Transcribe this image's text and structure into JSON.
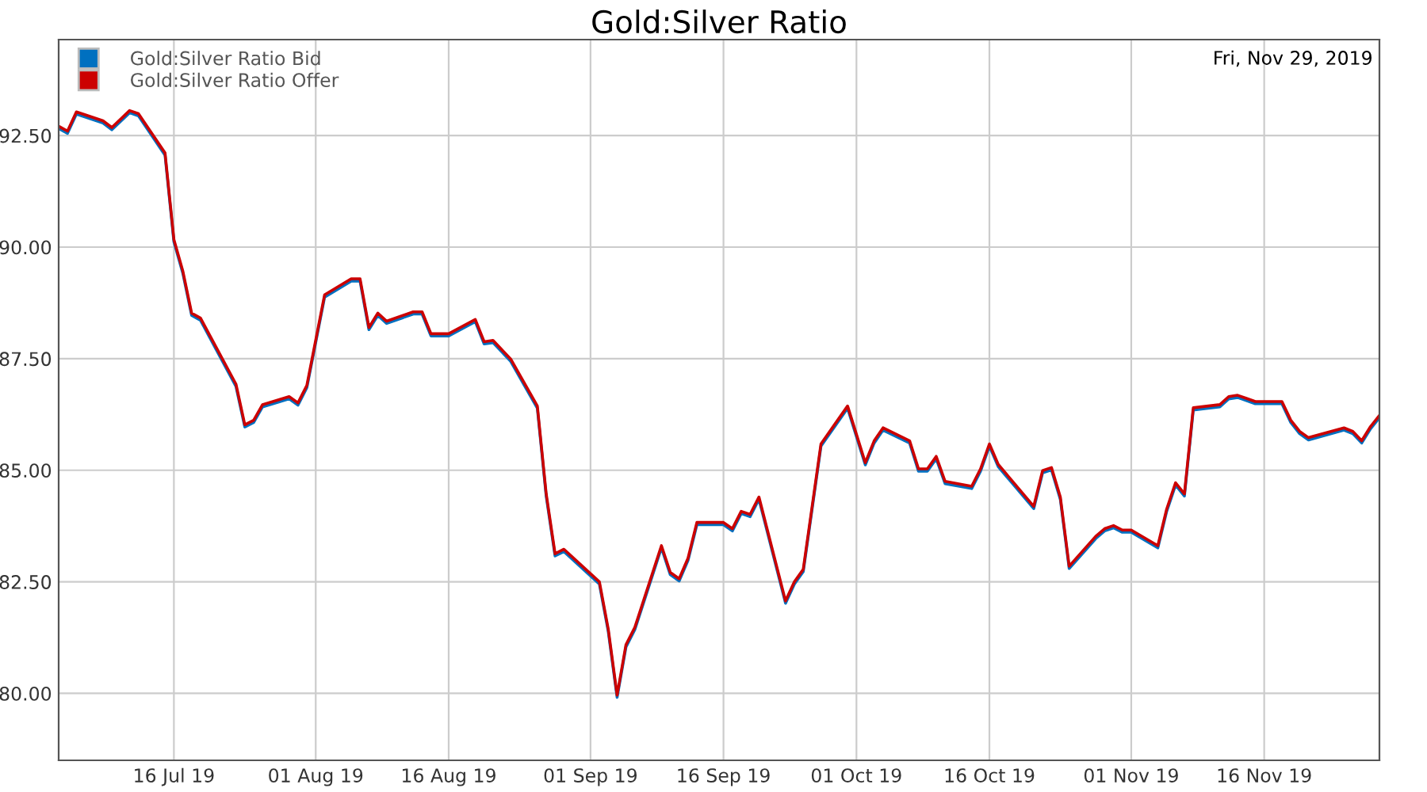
{
  "chart_data": {
    "type": "line",
    "title": "Gold:Silver Ratio",
    "annotations": [
      "Fri, Nov 29, 2019"
    ],
    "x": [
      "2019-07-03",
      "2019-07-04",
      "2019-07-05",
      "2019-07-08",
      "2019-07-09",
      "2019-07-11",
      "2019-07-12",
      "2019-07-15",
      "2019-07-16",
      "2019-07-17",
      "2019-07-18",
      "2019-07-19",
      "2019-07-23",
      "2019-07-24",
      "2019-07-25",
      "2019-07-26",
      "2019-07-29",
      "2019-07-30",
      "2019-07-31",
      "2019-08-02",
      "2019-08-05",
      "2019-08-06",
      "2019-08-07",
      "2019-08-08",
      "2019-08-09",
      "2019-08-12",
      "2019-08-13",
      "2019-08-14",
      "2019-08-16",
      "2019-08-19",
      "2019-08-20",
      "2019-08-21",
      "2019-08-23",
      "2019-08-26",
      "2019-08-27",
      "2019-08-28",
      "2019-08-29",
      "2019-09-02",
      "2019-09-03",
      "2019-09-04",
      "2019-09-05",
      "2019-09-06",
      "2019-09-09",
      "2019-09-10",
      "2019-09-11",
      "2019-09-12",
      "2019-09-13",
      "2019-09-16",
      "2019-09-17",
      "2019-09-18",
      "2019-09-19",
      "2019-09-20",
      "2019-09-23",
      "2019-09-24",
      "2019-09-25",
      "2019-09-27",
      "2019-09-30",
      "2019-10-02",
      "2019-10-03",
      "2019-10-04",
      "2019-10-07",
      "2019-10-08",
      "2019-10-09",
      "2019-10-10",
      "2019-10-11",
      "2019-10-14",
      "2019-10-15",
      "2019-10-16",
      "2019-10-17",
      "2019-10-21",
      "2019-10-22",
      "2019-10-23",
      "2019-10-24",
      "2019-10-25",
      "2019-10-28",
      "2019-10-29",
      "2019-10-30",
      "2019-10-31",
      "2019-11-01",
      "2019-11-04",
      "2019-11-05",
      "2019-11-06",
      "2019-11-07",
      "2019-11-08",
      "2019-11-11",
      "2019-11-12",
      "2019-11-13",
      "2019-11-14",
      "2019-11-15",
      "2019-11-18",
      "2019-11-19",
      "2019-11-20",
      "2019-11-21",
      "2019-11-25",
      "2019-11-26",
      "2019-11-27",
      "2019-11-28",
      "2019-11-29"
    ],
    "series": [
      {
        "name": "Gold:Silver Ratio Bid",
        "color": "#0070c0",
        "values": [
          92.66,
          92.55,
          92.98,
          92.78,
          92.63,
          93.01,
          92.94,
          92.06,
          90.12,
          89.42,
          88.47,
          88.36,
          86.88,
          85.97,
          86.07,
          86.42,
          86.6,
          86.46,
          86.85,
          88.88,
          89.24,
          89.24,
          88.15,
          88.47,
          88.29,
          88.5,
          88.5,
          88.01,
          88.01,
          88.33,
          87.83,
          87.86,
          87.44,
          86.39,
          84.42,
          83.08,
          83.18,
          82.45,
          81.39,
          79.91,
          81.04,
          81.43,
          83.26,
          82.66,
          82.52,
          82.98,
          83.78,
          83.78,
          83.64,
          84.03,
          83.96,
          84.35,
          82.02,
          82.45,
          82.73,
          85.54,
          86.39,
          85.12,
          85.61,
          85.9,
          85.61,
          84.98,
          84.98,
          85.26,
          84.7,
          84.59,
          84.98,
          85.54,
          85.08,
          84.14,
          84.94,
          85.01,
          84.35,
          82.8,
          83.47,
          83.64,
          83.71,
          83.61,
          83.61,
          83.26,
          84.08,
          84.67,
          84.42,
          86.35,
          86.42,
          86.6,
          86.63,
          86.56,
          86.49,
          86.49,
          86.07,
          85.82,
          85.68,
          85.9,
          85.82,
          85.61,
          85.93,
          86.18
        ]
      },
      {
        "name": "Gold:Silver Ratio Offer",
        "color": "#cc0000",
        "values": [
          92.71,
          92.6,
          93.03,
          92.83,
          92.68,
          93.06,
          92.99,
          92.11,
          90.17,
          89.47,
          88.52,
          88.41,
          86.93,
          86.02,
          86.12,
          86.47,
          86.65,
          86.51,
          86.9,
          88.93,
          89.29,
          89.29,
          88.2,
          88.52,
          88.34,
          88.55,
          88.55,
          88.06,
          88.06,
          88.38,
          87.88,
          87.91,
          87.49,
          86.44,
          84.47,
          83.13,
          83.23,
          82.5,
          81.44,
          79.96,
          81.09,
          81.48,
          83.31,
          82.71,
          82.57,
          83.03,
          83.83,
          83.83,
          83.69,
          84.08,
          84.01,
          84.4,
          82.07,
          82.5,
          82.78,
          85.59,
          86.44,
          85.17,
          85.66,
          85.95,
          85.66,
          85.03,
          85.03,
          85.31,
          84.75,
          84.64,
          85.03,
          85.59,
          85.13,
          84.19,
          84.99,
          85.06,
          84.4,
          82.85,
          83.52,
          83.69,
          83.76,
          83.66,
          83.66,
          83.31,
          84.13,
          84.72,
          84.47,
          86.4,
          86.47,
          86.65,
          86.68,
          86.61,
          86.54,
          86.54,
          86.12,
          85.87,
          85.73,
          85.95,
          85.87,
          85.66,
          85.98,
          86.23
        ]
      }
    ],
    "xlim": [
      "2019-07-03",
      "2019-11-29"
    ],
    "xticks": [
      {
        "value": "2019-07-16",
        "label": "16 Jul 19"
      },
      {
        "value": "2019-08-01",
        "label": "01 Aug 19"
      },
      {
        "value": "2019-08-16",
        "label": "16 Aug 19"
      },
      {
        "value": "2019-09-01",
        "label": "01 Sep 19"
      },
      {
        "value": "2019-09-16",
        "label": "16 Sep 19"
      },
      {
        "value": "2019-10-01",
        "label": "01 Oct 19"
      },
      {
        "value": "2019-10-16",
        "label": "16 Oct 19"
      },
      {
        "value": "2019-11-01",
        "label": "01 Nov 19"
      },
      {
        "value": "2019-11-16",
        "label": "16 Nov 19"
      }
    ],
    "ylim": [
      78.5,
      94.65
    ],
    "yticks": [
      {
        "value": 80,
        "label": "80.00"
      },
      {
        "value": 82.5,
        "label": "82.50"
      },
      {
        "value": 85,
        "label": "85.00"
      },
      {
        "value": 87.5,
        "label": "87.50"
      },
      {
        "value": 90,
        "label": "90.00"
      },
      {
        "value": 92.5,
        "label": "92.50"
      }
    ],
    "grid": true,
    "legend": "top left",
    "marker": "none",
    "line_style": "solid"
  }
}
